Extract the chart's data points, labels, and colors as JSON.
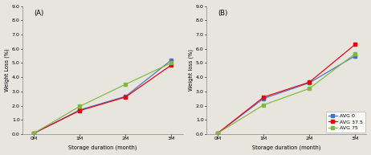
{
  "x_ticks": [
    "0M",
    "1M",
    "2M",
    "3M"
  ],
  "x_values": [
    0,
    1,
    2,
    3
  ],
  "panel_A": {
    "label": "(A)",
    "ylabel": "Weight Loss (%)",
    "xlabel": "Storage duration (month)",
    "ylim": [
      0,
      9.0
    ],
    "yticks": [
      0.0,
      1.0,
      2.0,
      3.0,
      4.0,
      5.0,
      6.0,
      7.0,
      8.0,
      9.0
    ],
    "series": {
      "AVG 0": {
        "color": "#4472C4",
        "marker": "s",
        "values": [
          0.05,
          1.7,
          2.65,
          5.2
        ]
      },
      "AVG 37.5": {
        "color": "#E8000A",
        "marker": "s",
        "values": [
          0.07,
          1.65,
          2.6,
          4.85
        ]
      },
      "AVG 75": {
        "color": "#7CBB3E",
        "marker": "s",
        "values": [
          0.07,
          1.95,
          3.5,
          5.0
        ]
      }
    }
  },
  "panel_B": {
    "label": "(B)",
    "ylabel": "Weight loss (%)",
    "xlabel": "Storage duration (month)",
    "ylim": [
      0,
      9.0
    ],
    "yticks": [
      0.0,
      1.0,
      2.0,
      3.0,
      4.0,
      5.0,
      6.0,
      7.0,
      8.0,
      9.0
    ],
    "series": {
      "AVG 0": {
        "color": "#4472C4",
        "marker": "s",
        "values": [
          0.07,
          2.5,
          3.6,
          5.5
        ]
      },
      "AVG 37.5": {
        "color": "#E8000A",
        "marker": "s",
        "values": [
          0.07,
          2.6,
          3.65,
          6.3
        ]
      },
      "AVG 75": {
        "color": "#7CBB3E",
        "marker": "s",
        "values": [
          0.07,
          2.05,
          3.2,
          5.65
        ]
      }
    },
    "legend": {
      "entries": [
        "AVG 0",
        "AVG 37.5",
        "AVG 75"
      ],
      "colors": [
        "#4472C4",
        "#E8000A",
        "#7CBB3E"
      ]
    }
  },
  "background_color": "#e8e4de",
  "fontsize_label": 4.8,
  "fontsize_tick": 4.5,
  "fontsize_legend": 4.5,
  "fontsize_panel": 6.0,
  "linewidth": 0.85,
  "markersize": 2.8
}
